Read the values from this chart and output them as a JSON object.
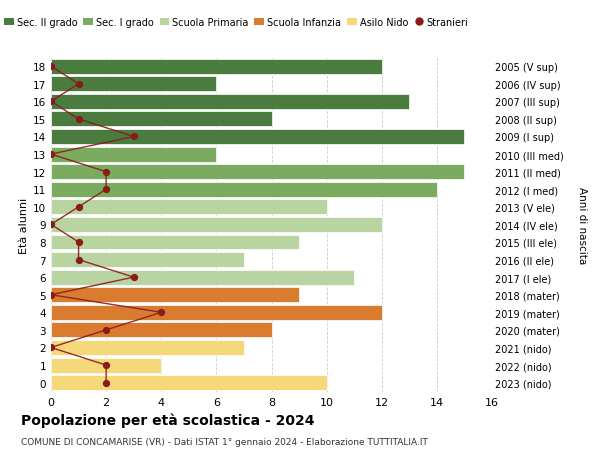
{
  "ages": [
    18,
    17,
    16,
    15,
    14,
    13,
    12,
    11,
    10,
    9,
    8,
    7,
    6,
    5,
    4,
    3,
    2,
    1,
    0
  ],
  "years": [
    "2005 (V sup)",
    "2006 (IV sup)",
    "2007 (III sup)",
    "2008 (II sup)",
    "2009 (I sup)",
    "2010 (III med)",
    "2011 (II med)",
    "2012 (I med)",
    "2013 (V ele)",
    "2014 (IV ele)",
    "2015 (III ele)",
    "2016 (II ele)",
    "2017 (I ele)",
    "2018 (mater)",
    "2019 (mater)",
    "2020 (mater)",
    "2021 (nido)",
    "2022 (nido)",
    "2023 (nido)"
  ],
  "bar_values": [
    12,
    6,
    13,
    8,
    15,
    6,
    15,
    14,
    10,
    12,
    9,
    7,
    11,
    9,
    12,
    8,
    7,
    4,
    10
  ],
  "bar_colors": [
    "#4a7c3f",
    "#4a7c3f",
    "#4a7c3f",
    "#4a7c3f",
    "#4a7c3f",
    "#7aab5e",
    "#7aab5e",
    "#7aab5e",
    "#b8d4a0",
    "#b8d4a0",
    "#b8d4a0",
    "#b8d4a0",
    "#b8d4a0",
    "#d97c30",
    "#d97c30",
    "#d97c30",
    "#f5d87a",
    "#f5d87a",
    "#f5d87a"
  ],
  "stranieri_values": [
    0,
    1,
    0,
    1,
    3,
    0,
    2,
    2,
    1,
    0,
    1,
    1,
    3,
    0,
    4,
    2,
    0,
    2,
    2
  ],
  "legend_labels": [
    "Sec. II grado",
    "Sec. I grado",
    "Scuola Primaria",
    "Scuola Infanzia",
    "Asilo Nido",
    "Stranieri"
  ],
  "legend_colors": [
    "#4a7c3f",
    "#7aab5e",
    "#b8d4a0",
    "#d97c30",
    "#f5d87a",
    "#8b1a1a"
  ],
  "title": "Popolazione per età scolastica - 2024",
  "subtitle": "COMUNE DI CONCAMARISE (VR) - Dati ISTAT 1° gennaio 2024 - Elaborazione TUTTITALIA.IT",
  "ylabel": "Età alunni",
  "ylabel_right": "Anni di nascita",
  "xlim": [
    0,
    16
  ],
  "background_color": "#ffffff",
  "grid_color": "#cccccc",
  "stranieri_line_color": "#8b1a1a",
  "stranieri_dot_color": "#8b1a1a"
}
